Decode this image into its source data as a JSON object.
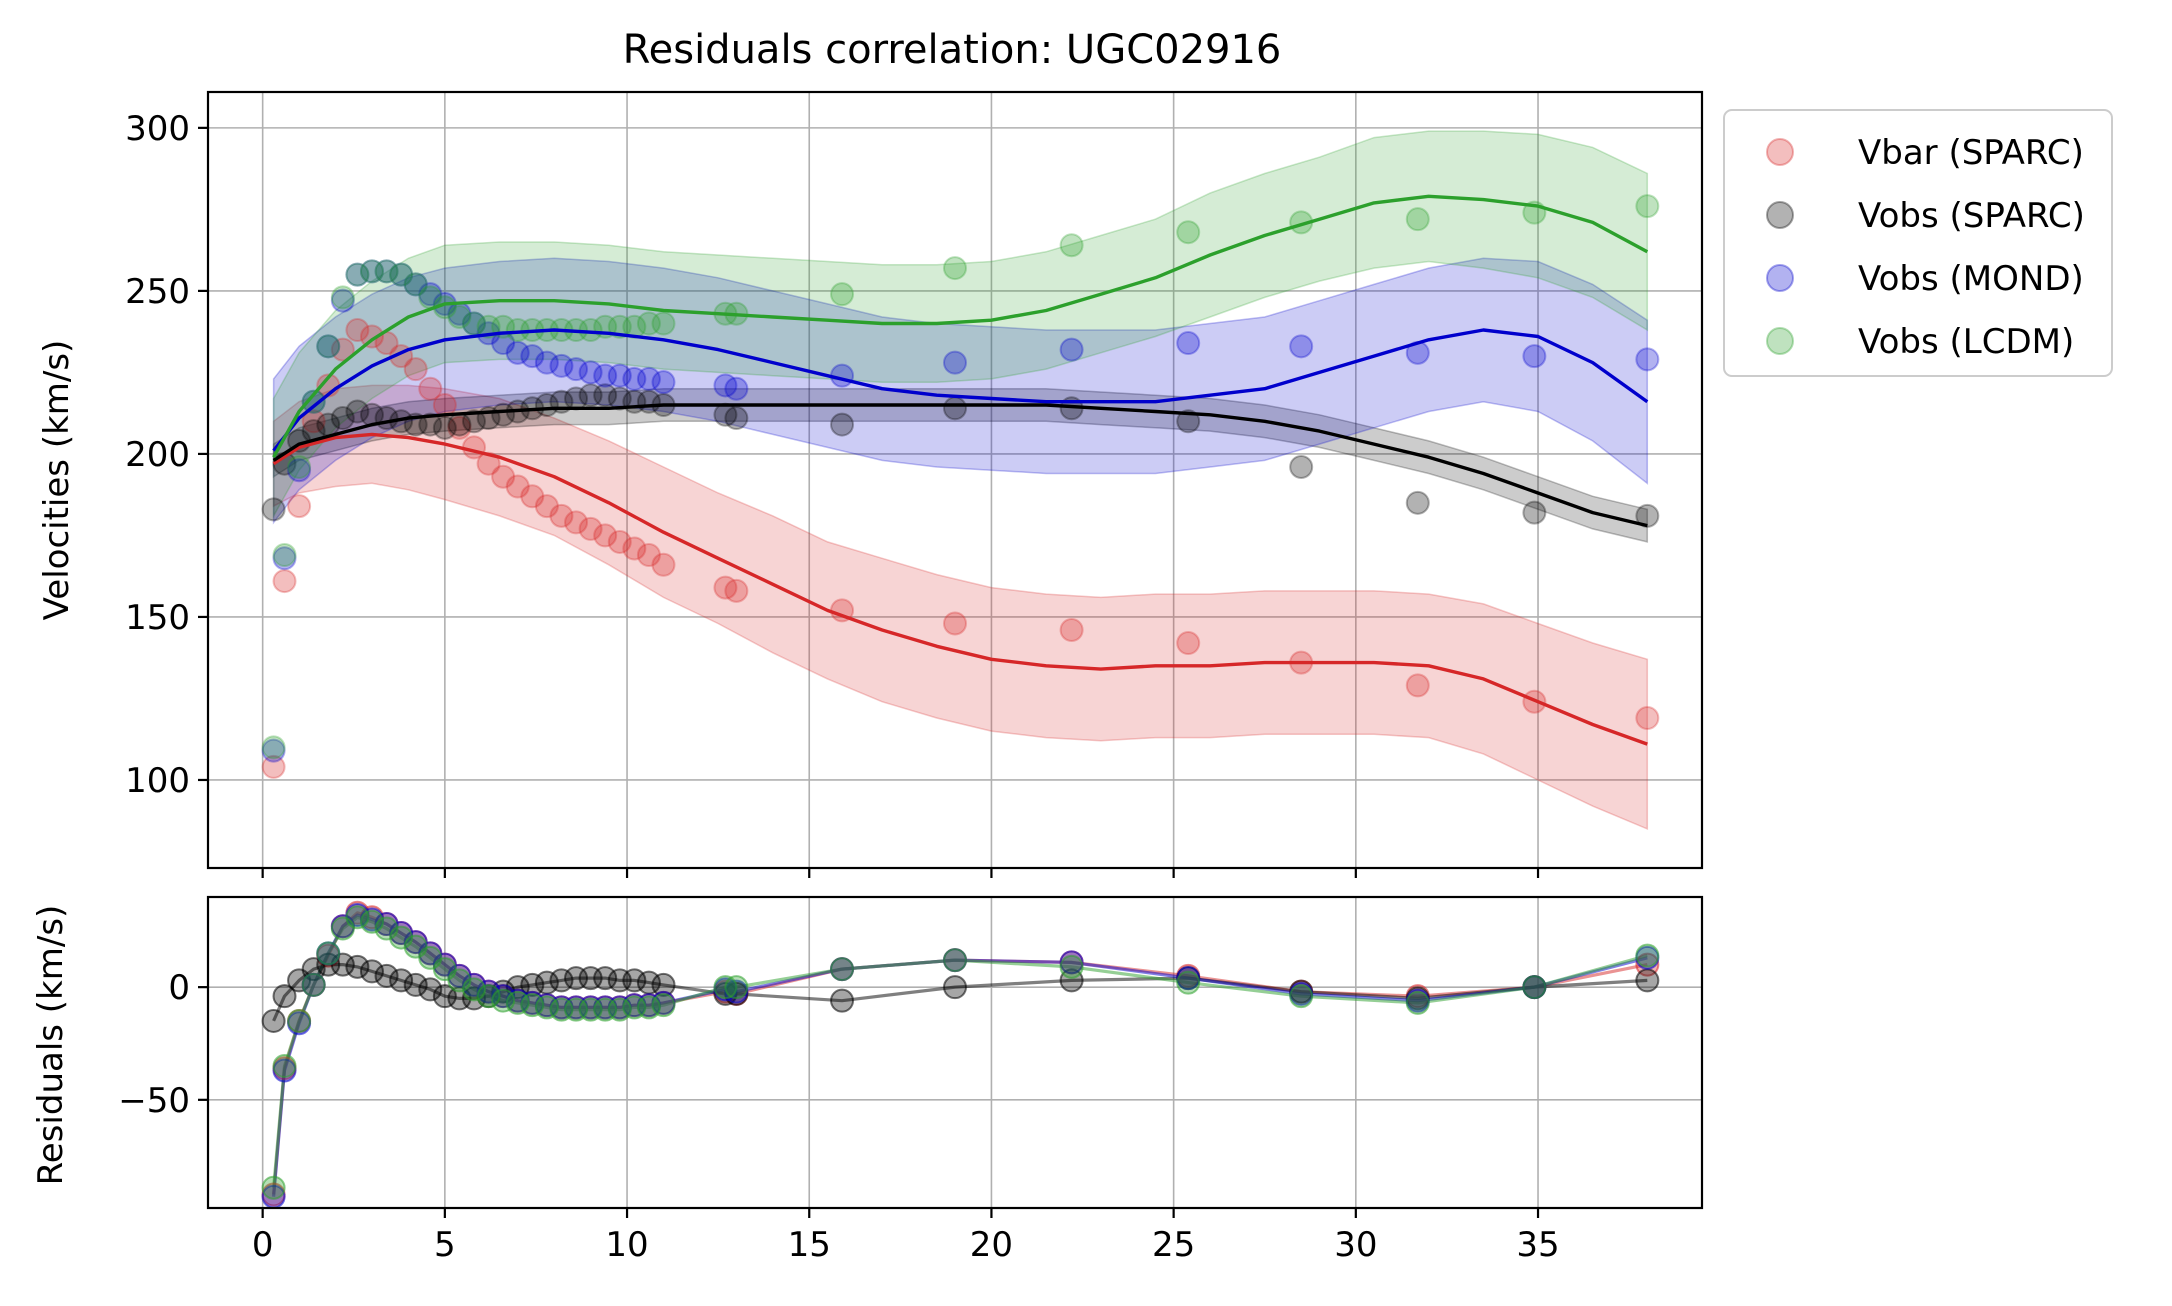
{
  "chart_data": [
    {
      "type": "line",
      "panel": "velocities",
      "title": "Residuals correlation: UGC02916",
      "xlabel": "",
      "ylabel": "Velocities (km/s)",
      "xlim": [
        -1.5,
        39.5
      ],
      "ylim": [
        73,
        311
      ],
      "xticks": [
        0,
        5,
        10,
        15,
        20,
        25,
        30,
        35
      ],
      "yticks": [
        100,
        150,
        200,
        250,
        300
      ],
      "grid": true,
      "legend_placement": "outside-top-right",
      "x": [
        0.3,
        0.6,
        1.0,
        1.4,
        1.8,
        2.2,
        2.6,
        3.0,
        3.4,
        3.8,
        4.2,
        4.6,
        5.0,
        5.4,
        5.8,
        6.2,
        6.6,
        7.0,
        7.4,
        7.8,
        8.2,
        8.6,
        9.0,
        9.4,
        9.8,
        10.2,
        10.6,
        11.0,
        12.7,
        13.0,
        15.9,
        19.0,
        22.2,
        25.4,
        28.5,
        31.7,
        34.9,
        38.0
      ],
      "series": [
        {
          "name": "Vbar (SPARC)",
          "color": "#d62728",
          "points": [
            104,
            161,
            184,
            210,
            221,
            232,
            238,
            236,
            234,
            230,
            226,
            220,
            215,
            208,
            202,
            197,
            193,
            190,
            187,
            184,
            181,
            179,
            177,
            175,
            173,
            171,
            169,
            166,
            159,
            158,
            152,
            148,
            146,
            142,
            136,
            129,
            124,
            119
          ],
          "fit": [
            197,
            202,
            205,
            206,
            205,
            203,
            199,
            193,
            185,
            176,
            168,
            160,
            152,
            146,
            141,
            137,
            135,
            134,
            135,
            135,
            136,
            136,
            136,
            135,
            131,
            124,
            117,
            111
          ],
          "band": [
            13,
            14,
            15,
            15,
            16,
            17,
            18,
            18,
            19,
            20,
            20,
            21,
            21,
            22,
            22,
            22,
            22,
            22,
            22,
            22,
            22,
            22,
            22,
            22,
            23,
            24,
            25,
            26
          ]
        },
        {
          "name": "Vobs (SPARC)",
          "color": "#000000",
          "points": [
            183,
            197,
            204,
            207,
            209,
            211,
            213,
            212,
            211,
            210,
            209,
            209,
            208,
            209,
            210,
            211,
            212,
            213,
            214,
            215,
            216,
            217,
            218,
            218,
            217,
            216,
            216,
            215,
            212,
            211,
            209,
            214,
            214,
            210,
            196,
            185,
            182,
            181
          ],
          "fit": [
            198,
            203,
            206,
            209,
            211,
            212,
            213,
            214,
            214,
            215,
            215,
            215,
            215,
            215,
            215,
            215,
            215,
            214,
            213,
            212,
            210,
            207,
            203,
            199,
            194,
            188,
            182,
            178
          ],
          "band": [
            5,
            5,
            5,
            5,
            5,
            5,
            5,
            5,
            5,
            5,
            5,
            5,
            5,
            5,
            5,
            5,
            5,
            5,
            5,
            5,
            5,
            5,
            5,
            5,
            5,
            5,
            5,
            5
          ]
        },
        {
          "name": "Vobs (MOND)",
          "color": "#0000cc",
          "points": [
            109,
            168,
            195,
            216,
            233,
            247,
            255,
            256,
            256,
            255,
            252,
            249,
            246,
            243,
            240,
            237,
            234,
            231,
            230,
            228,
            227,
            226,
            225,
            224,
            224,
            223,
            223,
            222,
            221,
            220,
            224,
            228,
            232,
            234,
            233,
            231,
            230,
            229
          ],
          "fit": [
            201,
            211,
            220,
            227,
            232,
            235,
            237,
            238,
            237,
            235,
            232,
            228,
            224,
            220,
            218,
            217,
            216,
            216,
            216,
            218,
            220,
            225,
            230,
            235,
            238,
            236,
            228,
            216
          ],
          "band": [
            22,
            22,
            22,
            22,
            22,
            22,
            22,
            22,
            22,
            22,
            22,
            22,
            22,
            22,
            22,
            22,
            22,
            22,
            22,
            22,
            22,
            22,
            22,
            22,
            22,
            23,
            24,
            25
          ]
        },
        {
          "name": "Vobs (LCDM)",
          "color": "#2ca02c",
          "points": [
            110,
            169,
            196,
            216,
            233,
            248,
            255,
            256,
            256,
            255,
            252,
            248,
            245,
            242,
            240,
            239,
            239,
            238,
            238,
            238,
            238,
            238,
            238,
            239,
            239,
            239,
            240,
            240,
            243,
            243,
            249,
            257,
            264,
            268,
            271,
            272,
            274,
            276
          ],
          "fit": [
            199,
            213,
            226,
            235,
            242,
            246,
            247,
            247,
            246,
            244,
            243,
            242,
            241,
            240,
            240,
            241,
            244,
            249,
            254,
            261,
            267,
            272,
            277,
            279,
            278,
            276,
            271,
            262
          ],
          "band": [
            18,
            18,
            18,
            18,
            18,
            18,
            18,
            18,
            18,
            18,
            18,
            18,
            18,
            18,
            18,
            18,
            18,
            18,
            18,
            19,
            19,
            19,
            20,
            20,
            21,
            22,
            23,
            24
          ]
        }
      ],
      "fit_x": [
        0.3,
        1.0,
        2.0,
        3.0,
        4.0,
        5.0,
        6.5,
        8.0,
        9.5,
        11.0,
        12.5,
        14.0,
        15.5,
        17.0,
        18.5,
        20.0,
        21.5,
        23.0,
        24.5,
        26.0,
        27.5,
        29.0,
        30.5,
        32.0,
        33.5,
        35.0,
        36.5,
        38.0
      ]
    },
    {
      "type": "line",
      "panel": "residuals",
      "xlabel": "",
      "ylabel": "Residuals (km/s)",
      "xlim": [
        -1.5,
        39.5
      ],
      "ylim": [
        -98,
        40
      ],
      "xticks": [
        0,
        5,
        10,
        15,
        20,
        25,
        30,
        35
      ],
      "yticks": [
        -50,
        0
      ],
      "grid": true,
      "x": [
        0.3,
        0.6,
        1.0,
        1.4,
        1.8,
        2.2,
        2.6,
        3.0,
        3.4,
        3.8,
        4.2,
        4.6,
        5.0,
        5.4,
        5.8,
        6.2,
        6.6,
        7.0,
        7.4,
        7.8,
        8.2,
        8.6,
        9.0,
        9.4,
        9.8,
        10.2,
        10.6,
        11.0,
        12.7,
        13.0,
        15.9,
        19.0,
        22.2,
        25.4,
        28.5,
        31.7,
        34.9,
        38.0
      ],
      "series": [
        {
          "name": "Vbar (SPARC)",
          "color": "#d62728",
          "values": [
            -92,
            -36,
            -15,
            1,
            14,
            27,
            33,
            31,
            28,
            24,
            20,
            15,
            10,
            5,
            1,
            -2,
            -4,
            -6,
            -7,
            -8,
            -9,
            -9,
            -9,
            -9,
            -9,
            -8,
            -8,
            -7,
            -2,
            -3,
            8,
            12,
            11,
            5,
            -2,
            -4,
            0,
            10
          ]
        },
        {
          "name": "Vobs (SPARC)",
          "color": "#000000",
          "values": [
            -15,
            -4,
            3,
            8,
            10,
            10,
            9,
            7,
            5,
            3,
            1,
            -1,
            -4,
            -5,
            -5,
            -4,
            -2,
            0,
            1,
            2,
            3,
            4,
            4,
            4,
            3,
            3,
            2,
            1,
            -3,
            -3,
            -6,
            0,
            3,
            4,
            -2,
            -5,
            0,
            3
          ]
        },
        {
          "name": "Vobs (MOND)",
          "color": "#0000cc",
          "values": [
            -93,
            -37,
            -16,
            1,
            15,
            27,
            32,
            30,
            28,
            24,
            20,
            15,
            10,
            5,
            1,
            -2,
            -4,
            -6,
            -7,
            -8,
            -9,
            -9,
            -9,
            -9,
            -9,
            -8,
            -8,
            -7,
            -1,
            -2,
            8,
            12,
            11,
            4,
            -3,
            -6,
            0,
            13
          ]
        },
        {
          "name": "Vobs (LCDM)",
          "color": "#2ca02c",
          "values": [
            -89,
            -35,
            -15,
            1,
            15,
            26,
            31,
            29,
            26,
            22,
            18,
            13,
            8,
            3,
            -1,
            -4,
            -6,
            -7,
            -8,
            -9,
            -10,
            -10,
            -10,
            -10,
            -10,
            -9,
            -9,
            -8,
            0,
            0,
            8,
            12,
            9,
            2,
            -4,
            -7,
            0,
            14
          ]
        }
      ]
    }
  ]
}
